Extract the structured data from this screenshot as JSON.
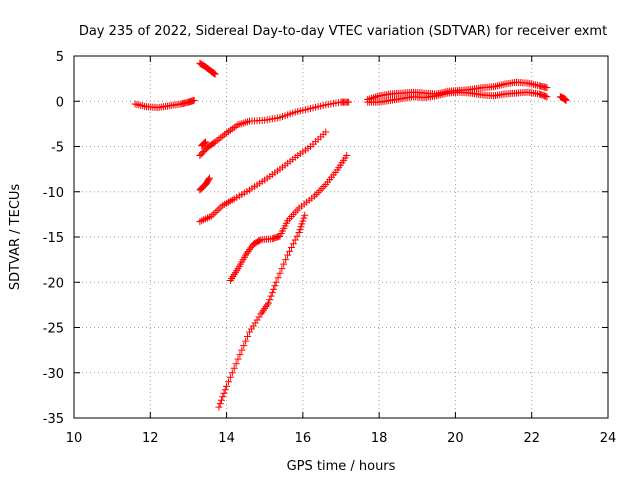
{
  "chart_data": {
    "type": "scatter",
    "title": "Day 235 of 2022, Sidereal Day-to-day VTEC variation (SDTVAR) for receiver exmt",
    "xlabel": "GPS time / hours",
    "ylabel": "SDTVAR / TECUs",
    "xlim": [
      10,
      24
    ],
    "ylim": [
      -35,
      5
    ],
    "xticks": [
      10,
      12,
      14,
      16,
      18,
      20,
      22,
      24
    ],
    "yticks": [
      5,
      0,
      -5,
      -10,
      -15,
      -20,
      -25,
      -30,
      -35
    ],
    "xtick_labels": [
      "10",
      "12",
      "14",
      "16",
      "18",
      "20",
      "22",
      "24"
    ],
    "ytick_labels": [
      "5",
      "0",
      "-5",
      "-10",
      "-15",
      "-20",
      "-25",
      "-30",
      "-35"
    ],
    "grid": true,
    "marker": "plus",
    "color": "#ff0000",
    "series": [
      {
        "name": "track-1",
        "points": [
          [
            11.6,
            -0.3
          ],
          [
            11.9,
            -0.6
          ],
          [
            12.2,
            -0.7
          ],
          [
            12.5,
            -0.5
          ],
          [
            12.8,
            -0.3
          ],
          [
            13.0,
            -0.1
          ],
          [
            13.15,
            0.1
          ]
        ]
      },
      {
        "name": "track-2",
        "points": [
          [
            13.3,
            4.2
          ],
          [
            13.45,
            3.8
          ],
          [
            13.6,
            3.3
          ],
          [
            13.7,
            3.0
          ]
        ]
      },
      {
        "name": "track-3",
        "points": [
          [
            13.35,
            -4.9
          ],
          [
            13.45,
            -4.5
          ]
        ]
      },
      {
        "name": "track-4",
        "points": [
          [
            13.3,
            -6.0
          ],
          [
            13.5,
            -5.1
          ],
          [
            13.7,
            -4.5
          ],
          [
            14.0,
            -3.5
          ],
          [
            14.3,
            -2.6
          ],
          [
            14.6,
            -2.2
          ],
          [
            15.0,
            -2.1
          ],
          [
            15.4,
            -1.8
          ],
          [
            15.8,
            -1.2
          ],
          [
            16.2,
            -0.8
          ],
          [
            16.6,
            -0.4
          ],
          [
            17.0,
            -0.1
          ],
          [
            17.2,
            -0.1
          ]
        ]
      },
      {
        "name": "track-5",
        "points": [
          [
            13.3,
            -9.8
          ],
          [
            13.45,
            -9.2
          ],
          [
            13.55,
            -8.5
          ]
        ]
      },
      {
        "name": "track-6",
        "points": [
          [
            13.3,
            -13.3
          ],
          [
            13.6,
            -12.7
          ],
          [
            13.9,
            -11.5
          ],
          [
            14.2,
            -10.8
          ],
          [
            14.6,
            -9.8
          ],
          [
            15.0,
            -8.7
          ],
          [
            15.4,
            -7.5
          ],
          [
            15.8,
            -6.2
          ],
          [
            16.2,
            -5.0
          ],
          [
            16.6,
            -3.4
          ]
        ]
      },
      {
        "name": "track-7",
        "points": [
          [
            14.1,
            -19.8
          ],
          [
            14.3,
            -18.5
          ],
          [
            14.5,
            -17.0
          ],
          [
            14.7,
            -15.8
          ],
          [
            14.9,
            -15.3
          ],
          [
            15.2,
            -15.2
          ],
          [
            15.4,
            -14.9
          ],
          [
            15.6,
            -13.2
          ],
          [
            15.9,
            -11.8
          ],
          [
            16.3,
            -10.5
          ],
          [
            16.6,
            -9.2
          ],
          [
            16.9,
            -7.6
          ],
          [
            17.15,
            -6.0
          ]
        ]
      },
      {
        "name": "track-8",
        "points": [
          [
            13.8,
            -33.8
          ],
          [
            14.0,
            -31.5
          ],
          [
            14.3,
            -28.5
          ],
          [
            14.6,
            -25.5
          ],
          [
            14.9,
            -23.5
          ],
          [
            15.1,
            -22.3
          ],
          [
            15.3,
            -20.0
          ],
          [
            15.6,
            -17.0
          ],
          [
            15.9,
            -14.5
          ],
          [
            16.05,
            -12.6
          ]
        ]
      },
      {
        "name": "track-9",
        "points": [
          [
            17.7,
            0.2
          ],
          [
            18.0,
            0.6
          ],
          [
            18.3,
            0.8
          ],
          [
            18.6,
            0.9
          ],
          [
            18.9,
            1.0
          ],
          [
            19.2,
            0.9
          ],
          [
            19.5,
            0.8
          ],
          [
            19.8,
            1.1
          ],
          [
            20.1,
            1.2
          ],
          [
            20.4,
            1.3
          ],
          [
            20.7,
            1.5
          ],
          [
            21.0,
            1.6
          ],
          [
            21.3,
            1.9
          ],
          [
            21.6,
            2.1
          ],
          [
            21.9,
            2.0
          ],
          [
            22.2,
            1.7
          ],
          [
            22.4,
            1.5
          ]
        ]
      },
      {
        "name": "track-10",
        "points": [
          [
            17.7,
            -0.1
          ],
          [
            18.0,
            -0.1
          ],
          [
            18.3,
            0.1
          ],
          [
            18.6,
            0.3
          ],
          [
            18.9,
            0.5
          ],
          [
            19.2,
            0.4
          ],
          [
            19.5,
            0.6
          ],
          [
            19.8,
            0.9
          ],
          [
            20.1,
            1.0
          ],
          [
            20.4,
            0.9
          ],
          [
            20.7,
            0.7
          ],
          [
            21.0,
            0.6
          ],
          [
            21.3,
            0.8
          ],
          [
            21.6,
            0.9
          ],
          [
            21.9,
            1.0
          ],
          [
            22.2,
            0.8
          ],
          [
            22.4,
            0.5
          ]
        ]
      },
      {
        "name": "track-11",
        "points": [
          [
            22.75,
            0.5
          ],
          [
            22.85,
            0.3
          ],
          [
            22.9,
            0.1
          ]
        ]
      }
    ]
  }
}
